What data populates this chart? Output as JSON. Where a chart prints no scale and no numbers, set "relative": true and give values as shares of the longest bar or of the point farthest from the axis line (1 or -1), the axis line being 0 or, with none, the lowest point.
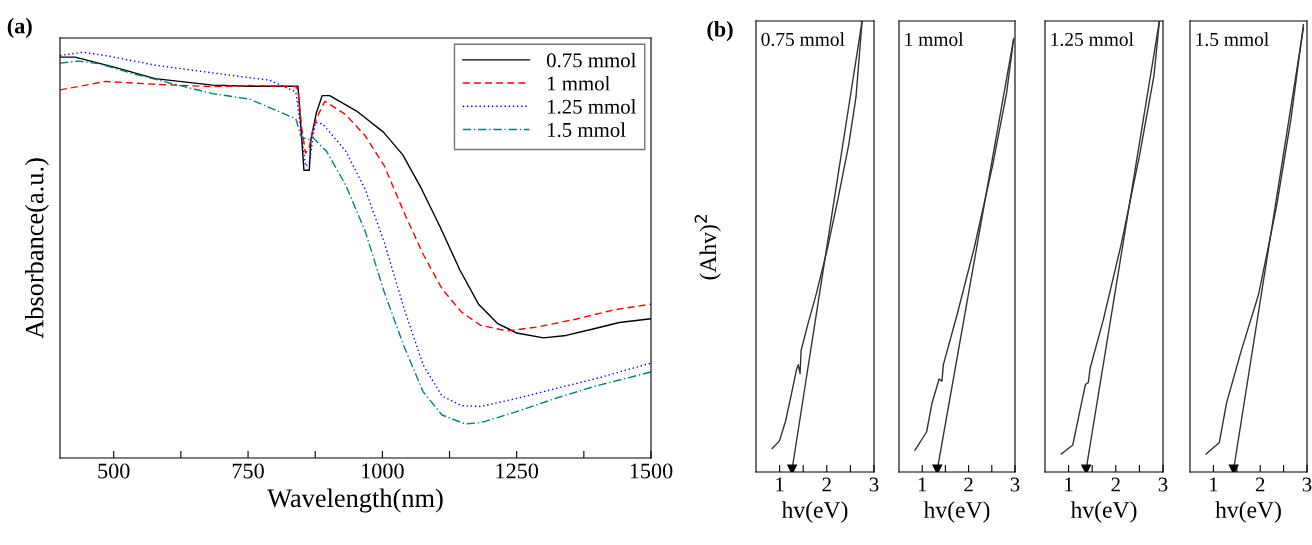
{
  "chart_data": [
    {
      "type": "line",
      "title": "(a)",
      "xlabel": "Wavelength(nm)",
      "ylabel": "Absorbance(a.u.)",
      "relative": true,
      "xlim": [
        400,
        1500
      ],
      "xticks": [
        500,
        {
          "value": 625,
          "label": null
        },
        750,
        {
          "value": 875,
          "label": null
        },
        1000,
        {
          "value": 1125,
          "label": null
        },
        1250,
        {
          "value": 1375,
          "label": null
        },
        1500
      ],
      "legend": "top right",
      "tick_labels": "x",
      "series": [
        {
          "name": "0.75 mmol",
          "color": "#000000",
          "line_style": "solid",
          "x": [
            400,
            428,
            499,
            577,
            684,
            754,
            839,
            843,
            854,
            864,
            867,
            877,
            888,
            902,
            952,
            1002,
            1038,
            1073,
            1108,
            1144,
            1179,
            1214,
            1250,
            1300,
            1342,
            1392,
            1441,
            1500
          ],
          "values": [
            0.988,
            0.988,
            0.964,
            0.935,
            0.919,
            0.916,
            0.916,
            0.916,
            0.709,
            0.709,
            0.784,
            0.85,
            0.893,
            0.893,
            0.855,
            0.803,
            0.747,
            0.663,
            0.568,
            0.464,
            0.379,
            0.332,
            0.308,
            0.296,
            0.302,
            0.318,
            0.334,
            0.343
          ]
        },
        {
          "name": "1 mmol",
          "color": "#ff0000",
          "line_style": "dashed",
          "x": [
            400,
            485,
            577,
            684,
            754,
            839,
            843,
            850,
            857,
            864,
            871,
            882,
            893,
            932,
            968,
            1004,
            1040,
            1076,
            1111,
            1147,
            1183,
            1232,
            1289,
            1360,
            1431,
            1500
          ],
          "values": [
            0.907,
            0.928,
            0.921,
            0.915,
            0.918,
            0.915,
            0.907,
            0.813,
            0.751,
            0.766,
            0.813,
            0.85,
            0.879,
            0.846,
            0.794,
            0.719,
            0.606,
            0.502,
            0.417,
            0.36,
            0.327,
            0.313,
            0.323,
            0.342,
            0.365,
            0.379
          ]
        },
        {
          "name": "1.25 mmol",
          "color": "#0000ff",
          "line_style": "dotted",
          "x": [
            400,
            443,
            492,
            577,
            684,
            790,
            839,
            848,
            857,
            864,
            875,
            889,
            932,
            968,
            1004,
            1040,
            1076,
            1111,
            1147,
            1183,
            1254,
            1325,
            1396,
            1500
          ],
          "values": [
            0.992,
            1,
            0.99,
            0.968,
            0.949,
            0.931,
            0.902,
            0.813,
            0.719,
            0.727,
            0.827,
            0.823,
            0.756,
            0.662,
            0.53,
            0.37,
            0.229,
            0.153,
            0.129,
            0.127,
            0.148,
            0.172,
            0.195,
            0.234
          ]
        },
        {
          "name": "1.5 mmol",
          "color": "#008080",
          "line_style": "dashdot",
          "x": [
            400,
            435,
            471,
            542,
            613,
            684,
            754,
            839,
            848,
            861,
            871,
            896,
            932,
            968,
            1004,
            1040,
            1076,
            1111,
            1154,
            1183,
            1254,
            1325,
            1396,
            1500
          ],
          "values": [
            0.973,
            0.978,
            0.972,
            0.945,
            0.921,
            0.898,
            0.884,
            0.836,
            0.794,
            0.784,
            0.789,
            0.756,
            0.672,
            0.559,
            0.407,
            0.276,
            0.163,
            0.106,
            0.084,
            0.087,
            0.116,
            0.148,
            0.177,
            0.212
          ]
        }
      ]
    },
    {
      "type": "line",
      "title": "0.75 mmol",
      "xlabel": "hv(eV)",
      "ylabel": "(Ahv)$^{2}$",
      "annotations": [
        "(b)"
      ],
      "relative": true,
      "xlim": [
        0.5,
        3
      ],
      "xticks": [
        1,
        {
          "value": 1.5,
          "label": null
        },
        2,
        {
          "value": 2.5,
          "label": null
        },
        3
      ],
      "tick_labels": "x",
      "x": [
        0.844,
        0.997,
        1.127,
        1.242,
        1.356,
        1.395,
        1.433,
        1.456,
        1.586,
        1.777,
        2.006,
        2.236,
        2.465,
        2.618,
        2.748
      ],
      "series": [
        {
          "color": "#333333",
          "values": [
            0.052,
            0.069,
            0.113,
            0.169,
            0.226,
            0.238,
            0.218,
            0.27,
            0.323,
            0.395,
            0.492,
            0.605,
            0.726,
            0.831,
            1.0
          ]
        },
        {
          "color": "#333333",
          "x": [
            1.265,
            2.748
          ],
          "values": [
            0.006,
            1.0
          ]
        }
      ]
    },
    {
      "type": "line",
      "title": "1 mmol",
      "xlabel": "hv(eV)",
      "relative": true,
      "xlim": [
        0.5,
        3
      ],
      "xticks": [
        1,
        {
          "value": 1.5,
          "label": null
        },
        2,
        {
          "value": 2.5,
          "label": null
        },
        3
      ],
      "tick_labels": "x",
      "x": [
        0.844,
        1.096,
        1.211,
        1.364,
        1.425,
        1.456,
        1.746,
        2.128,
        2.511,
        2.817,
        2.97
      ],
      "series": [
        {
          "color": "#333333",
          "values": [
            0.05,
            0.093,
            0.159,
            0.215,
            0.21,
            0.248,
            0.361,
            0.521,
            0.705,
            0.874,
            1.0
          ]
        },
        {
          "color": "#333333",
          "x": [
            1.326,
            2.97
          ],
          "values": [
            0.006,
            1.0
          ]
        }
      ]
    },
    {
      "type": "line",
      "title": "1.25 mmol",
      "xlabel": "hv(eV)",
      "relative": true,
      "xlim": [
        0.5,
        3
      ],
      "xticks": [
        1,
        {
          "value": 1.5,
          "label": null
        },
        2,
        {
          "value": 2.5,
          "label": null
        },
        3
      ],
      "tick_labels": "x",
      "x": [
        0.844,
        1.089,
        1.242,
        1.356,
        1.417,
        1.456,
        1.739,
        2.121,
        2.503,
        2.809,
        2.924
      ],
      "series": [
        {
          "color": "#333333",
          "values": [
            0.04,
            0.06,
            0.137,
            0.194,
            0.198,
            0.23,
            0.339,
            0.508,
            0.702,
            0.879,
            1.0
          ]
        },
        {
          "color": "#333333",
          "x": [
            1.372,
            2.924
          ],
          "values": [
            0.006,
            1.0
          ]
        }
      ]
    },
    {
      "type": "line",
      "title": "1.5 mmol",
      "xlabel": "hv(eV)",
      "relative": true,
      "xlim": [
        0.5,
        3
      ],
      "xticks": [
        1,
        {
          "value": 1.5,
          "label": null
        },
        2,
        {
          "value": 2.5,
          "label": null
        },
        3
      ],
      "tick_labels": "x",
      "x": [
        0.844,
        1.127,
        1.28,
        1.586,
        1.968,
        2.35,
        2.656,
        2.924
      ],
      "series": [
        {
          "color": "#333333",
          "values": [
            0.04,
            0.066,
            0.154,
            0.268,
            0.398,
            0.594,
            0.788,
            1.0
          ]
        },
        {
          "color": "#333333",
          "x": [
            1.433,
            2.924
          ],
          "values": [
            0.006,
            0.993
          ]
        }
      ]
    }
  ]
}
